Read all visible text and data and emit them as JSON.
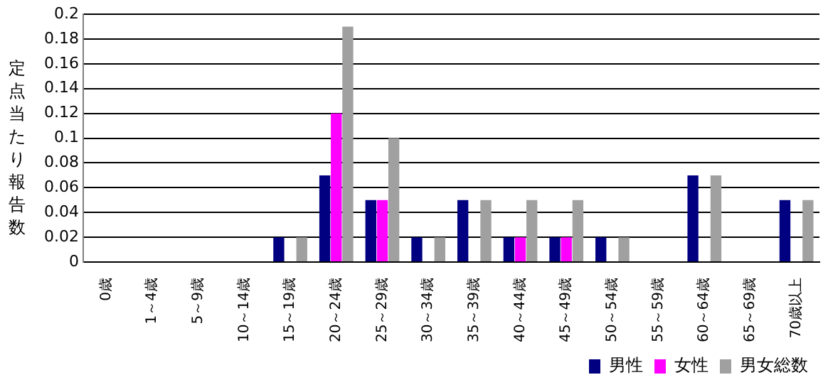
{
  "chart_data": {
    "type": "bar",
    "ylabel": "定点当たり報告数",
    "categories": [
      "0歳",
      "1～4歳",
      "5～9歳",
      "10～14歳",
      "15～19歳",
      "20～24歳",
      "25～29歳",
      "30～34歳",
      "35～39歳",
      "40～44歳",
      "45～49歳",
      "50～54歳",
      "55～59歳",
      "60～64歳",
      "65～69歳",
      "70歳以上"
    ],
    "series": [
      {
        "name": "男性",
        "color": "#000080",
        "values": [
          0,
          0,
          0,
          0,
          0.02,
          0.07,
          0.05,
          0.02,
          0.05,
          0.02,
          0.02,
          0.02,
          0,
          0.07,
          0,
          0.05
        ]
      },
      {
        "name": "女性",
        "color": "#ff00ff",
        "values": [
          0,
          0,
          0,
          0,
          0,
          0.12,
          0.05,
          0,
          0,
          0.02,
          0.02,
          0,
          0,
          0,
          0,
          0
        ]
      },
      {
        "name": "男女総数",
        "color": "#a0a0a0",
        "values": [
          0,
          0,
          0,
          0,
          0.02,
          0.19,
          0.1,
          0.02,
          0.05,
          0.05,
          0.05,
          0.02,
          0,
          0.07,
          0,
          0.05
        ]
      }
    ],
    "ylim": [
      0,
      0.2
    ],
    "yticks": [
      0,
      0.02,
      0.04,
      0.06,
      0.08,
      0.1,
      0.12,
      0.14,
      0.16,
      0.18,
      0.2
    ],
    "grid": "y",
    "legend": "bottom right"
  }
}
